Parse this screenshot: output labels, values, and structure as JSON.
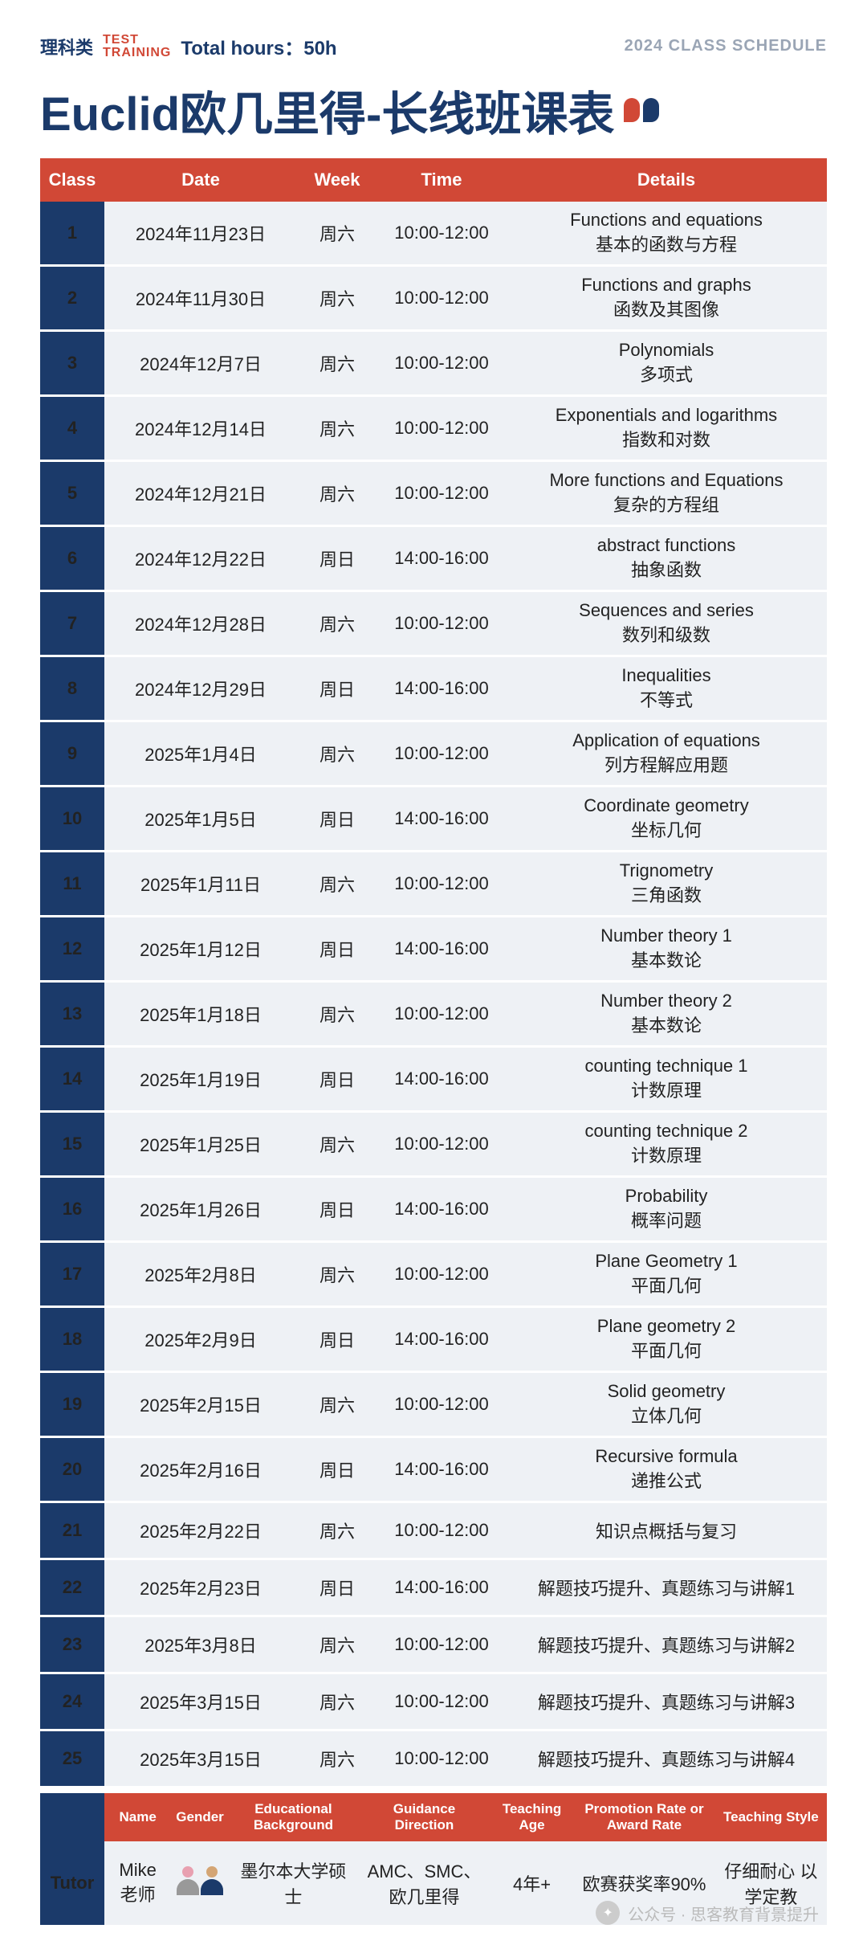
{
  "header": {
    "category": "理科类",
    "badge_line1": "TEST",
    "badge_line2": "TRAINING",
    "hours_label": "Total hours：50h",
    "schedule_label": "2024 CLASS SCHEDULE"
  },
  "title": "Euclid欧几里得-长线班课表",
  "columns": {
    "class": "Class",
    "date": "Date",
    "week": "Week",
    "time": "Time",
    "details": "Details"
  },
  "rows": [
    {
      "n": "1",
      "date": "2024年11月23日",
      "week": "周六",
      "time": "10:00-12:00",
      "en": "Functions and equations",
      "cn": "基本的函数与方程"
    },
    {
      "n": "2",
      "date": "2024年11月30日",
      "week": "周六",
      "time": "10:00-12:00",
      "en": "Functions and graphs",
      "cn": "函数及其图像"
    },
    {
      "n": "3",
      "date": "2024年12月7日",
      "week": "周六",
      "time": "10:00-12:00",
      "en": "Polynomials",
      "cn": "多项式"
    },
    {
      "n": "4",
      "date": "2024年12月14日",
      "week": "周六",
      "time": "10:00-12:00",
      "en": "Exponentials and logarithms",
      "cn": "指数和对数"
    },
    {
      "n": "5",
      "date": "2024年12月21日",
      "week": "周六",
      "time": "10:00-12:00",
      "en": "More functions and Equations",
      "cn": "复杂的方程组"
    },
    {
      "n": "6",
      "date": "2024年12月22日",
      "week": "周日",
      "time": "14:00-16:00",
      "en": "abstract functions",
      "cn": "抽象函数"
    },
    {
      "n": "7",
      "date": "2024年12月28日",
      "week": "周六",
      "time": "10:00-12:00",
      "en": "Sequences and series",
      "cn": "数列和级数"
    },
    {
      "n": "8",
      "date": "2024年12月29日",
      "week": "周日",
      "time": "14:00-16:00",
      "en": "Inequalities",
      "cn": "不等式"
    },
    {
      "n": "9",
      "date": "2025年1月4日",
      "week": "周六",
      "time": "10:00-12:00",
      "en": "Application of equations",
      "cn": "列方程解应用题"
    },
    {
      "n": "10",
      "date": "2025年1月5日",
      "week": "周日",
      "time": "14:00-16:00",
      "en": "Coordinate geometry",
      "cn": "坐标几何"
    },
    {
      "n": "11",
      "date": "2025年1月11日",
      "week": "周六",
      "time": "10:00-12:00",
      "en": "Trignometry",
      "cn": "三角函数"
    },
    {
      "n": "12",
      "date": "2025年1月12日",
      "week": "周日",
      "time": "14:00-16:00",
      "en": "Number theory 1",
      "cn": "基本数论"
    },
    {
      "n": "13",
      "date": "2025年1月18日",
      "week": "周六",
      "time": "10:00-12:00",
      "en": "Number theory 2",
      "cn": "基本数论"
    },
    {
      "n": "14",
      "date": "2025年1月19日",
      "week": "周日",
      "time": "14:00-16:00",
      "en": "counting technique 1",
      "cn": "计数原理"
    },
    {
      "n": "15",
      "date": "2025年1月25日",
      "week": "周六",
      "time": "10:00-12:00",
      "en": "counting technique 2",
      "cn": "计数原理"
    },
    {
      "n": "16",
      "date": "2025年1月26日",
      "week": "周日",
      "time": "14:00-16:00",
      "en": "Probability",
      "cn": "概率问题"
    },
    {
      "n": "17",
      "date": "2025年2月8日",
      "week": "周六",
      "time": "10:00-12:00",
      "en": "Plane Geometry 1",
      "cn": "平面几何"
    },
    {
      "n": "18",
      "date": "2025年2月9日",
      "week": "周日",
      "time": "14:00-16:00",
      "en": "Plane geometry 2",
      "cn": "平面几何"
    },
    {
      "n": "19",
      "date": "2025年2月15日",
      "week": "周六",
      "time": "10:00-12:00",
      "en": "Solid geometry",
      "cn": "立体几何"
    },
    {
      "n": "20",
      "date": "2025年2月16日",
      "week": "周日",
      "time": "14:00-16:00",
      "en": "Recursive formula",
      "cn": "递推公式"
    },
    {
      "n": "21",
      "date": "2025年2月22日",
      "week": "周六",
      "time": "10:00-12:00",
      "en": "",
      "cn": "知识点概括与复习"
    },
    {
      "n": "22",
      "date": "2025年2月23日",
      "week": "周日",
      "time": "14:00-16:00",
      "en": "",
      "cn": "解题技巧提升、真题练习与讲解1"
    },
    {
      "n": "23",
      "date": "2025年3月8日",
      "week": "周六",
      "time": "10:00-12:00",
      "en": "",
      "cn": "解题技巧提升、真题练习与讲解2"
    },
    {
      "n": "24",
      "date": "2025年3月15日",
      "week": "周六",
      "time": "10:00-12:00",
      "en": "",
      "cn": "解题技巧提升、真题练习与讲解3"
    },
    {
      "n": "25",
      "date": "2025年3月15日",
      "week": "周六",
      "time": "10:00-12:00",
      "en": "",
      "cn": "解题技巧提升、真题练习与讲解4"
    }
  ],
  "tutor": {
    "label": "Tutor",
    "cols": {
      "name": "Name",
      "gender": "Gender",
      "edu": "Educational Background",
      "dir": "Guidance Direction",
      "age": "Teaching Age",
      "rate": "Promotion Rate or Award Rate",
      "style": "Teaching Style"
    },
    "data": {
      "name": "Mike 老师",
      "edu": "墨尔本大学硕士",
      "dir": "AMC、SMC、欧几里得",
      "age": "4年+",
      "rate": "欧赛获奖率90%",
      "style": "仔细耐心 以学定教"
    }
  },
  "watermark": {
    "label": "公众号 · 思客教育背景提升"
  },
  "colors": {
    "primary": "#1b3a6a",
    "accent": "#d14836",
    "cell": "#eef1f5"
  }
}
